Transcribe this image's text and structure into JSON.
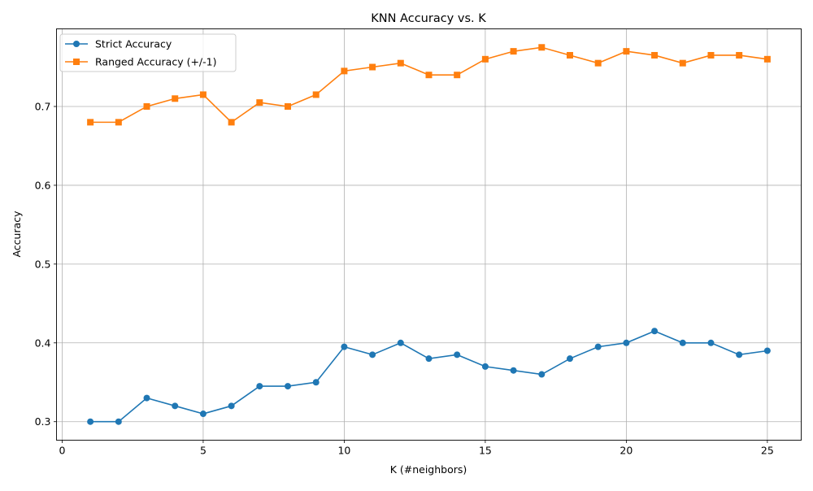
{
  "chart_data": {
    "type": "line",
    "title": "KNN Accuracy vs. K",
    "xlabel": "K (#neighbors)",
    "ylabel": "Accuracy",
    "xlim": [
      -0.2,
      26.2
    ],
    "ylim": [
      0.2765,
      0.7985
    ],
    "xticks": [
      0,
      5,
      10,
      15,
      20,
      25
    ],
    "xtick_labels": [
      "0",
      "5",
      "10",
      "15",
      "20",
      "25"
    ],
    "yticks": [
      0.3,
      0.4,
      0.5,
      0.6,
      0.7
    ],
    "ytick_labels": [
      "0.3",
      "0.4",
      "0.5",
      "0.6",
      "0.7"
    ],
    "grid": true,
    "legend_position": "top-left",
    "x": [
      1,
      2,
      3,
      4,
      5,
      6,
      7,
      8,
      9,
      10,
      11,
      12,
      13,
      14,
      15,
      16,
      17,
      18,
      19,
      20,
      21,
      22,
      23,
      24,
      25
    ],
    "series": [
      {
        "name": "Strict Accuracy",
        "color": "#1f77b4",
        "marker": "circle",
        "values": [
          0.3,
          0.3,
          0.33,
          0.32,
          0.31,
          0.32,
          0.345,
          0.345,
          0.35,
          0.395,
          0.385,
          0.4,
          0.38,
          0.385,
          0.37,
          0.365,
          0.36,
          0.38,
          0.395,
          0.4,
          0.415,
          0.4,
          0.4,
          0.385,
          0.39
        ]
      },
      {
        "name": "Ranged Accuracy (+/-1)",
        "color": "#ff7f0e",
        "marker": "square",
        "values": [
          0.68,
          0.68,
          0.7,
          0.71,
          0.715,
          0.68,
          0.705,
          0.7,
          0.715,
          0.745,
          0.75,
          0.755,
          0.74,
          0.74,
          0.76,
          0.77,
          0.775,
          0.765,
          0.755,
          0.77,
          0.765,
          0.755,
          0.765,
          0.765,
          0.76
        ]
      }
    ]
  }
}
